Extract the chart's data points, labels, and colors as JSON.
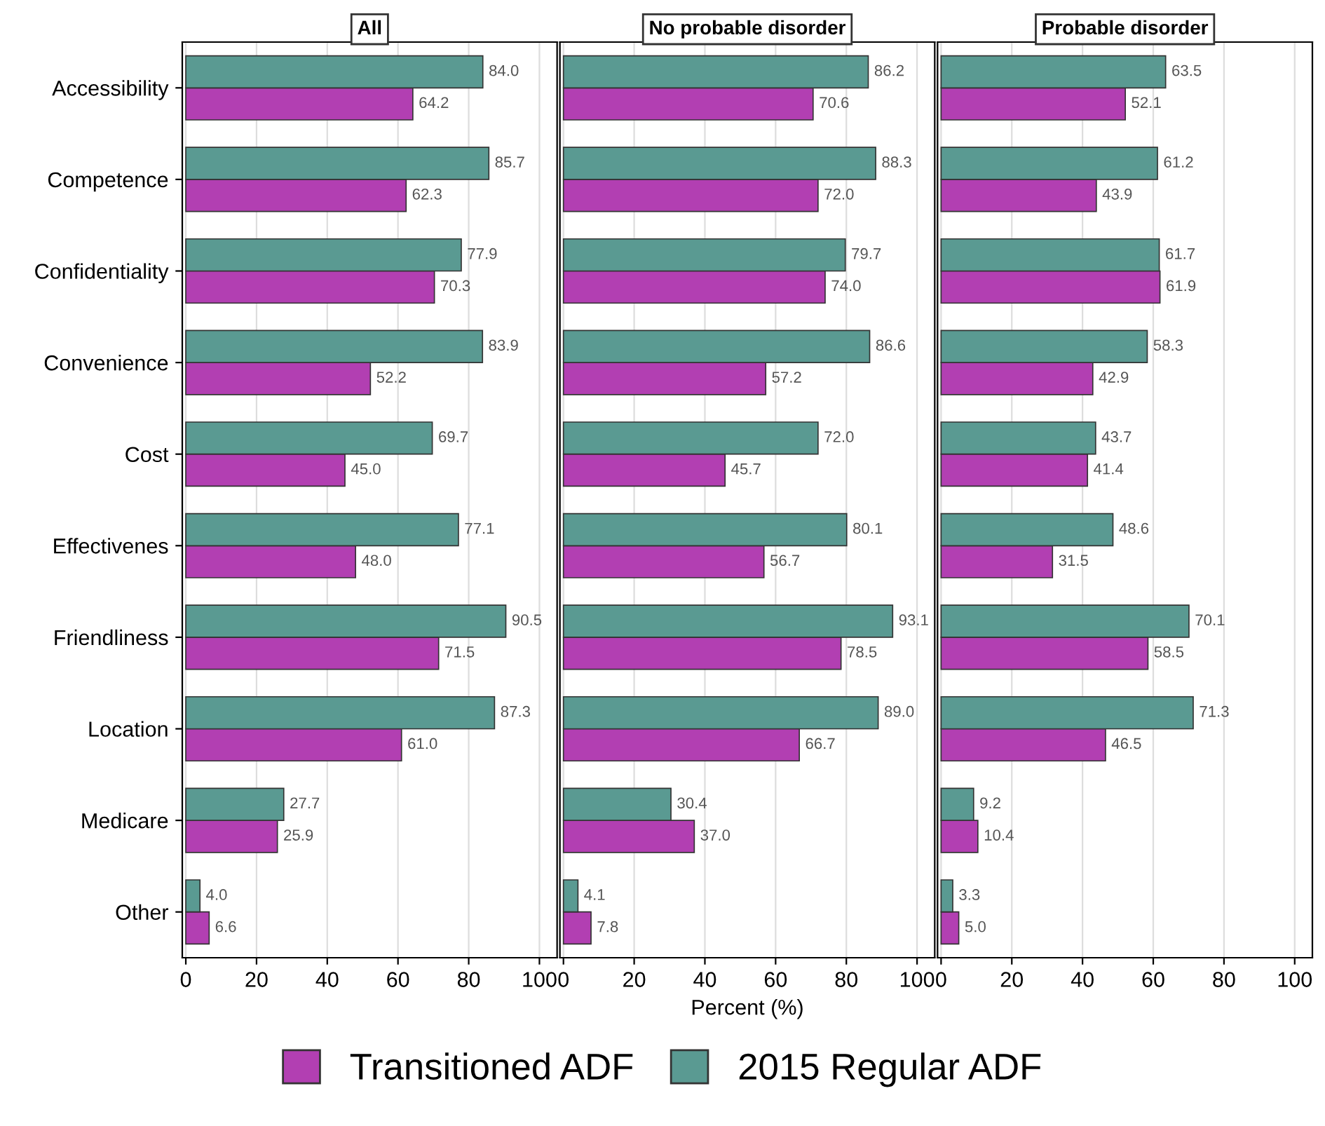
{
  "chart_data": [
    {
      "type": "bar",
      "orientation": "horizontal",
      "title": "All",
      "categories": [
        "Accessibility",
        "Competence",
        "Confidentiality",
        "Convenience",
        "Cost",
        "Effectivenes",
        "Friendliness",
        "Location",
        "Medicare",
        "Other"
      ],
      "series": [
        {
          "name": "Transitioned ADF",
          "color": "#b23fb2",
          "values": [
            64.2,
            62.3,
            70.3,
            52.2,
            45.0,
            48.0,
            71.5,
            61.0,
            25.9,
            6.6
          ],
          "value_labels": [
            "64.2",
            "62.3",
            "70.3",
            "52.2",
            "45.0",
            "48.0",
            "71.5",
            "61.0",
            "25.9",
            "6.6"
          ]
        },
        {
          "name": "2015 Regular ADF",
          "color": "#5a9a92",
          "values": [
            84.0,
            85.7,
            77.9,
            83.9,
            69.7,
            77.1,
            90.5,
            87.3,
            27.7,
            4.0
          ],
          "value_labels": [
            "84.0",
            "85.7",
            "77.9",
            "83.9",
            "69.7",
            "77.1",
            "90.5",
            "87.3",
            "27.7",
            "4.0"
          ]
        }
      ],
      "xlim": [
        -1,
        105
      ],
      "xticks": [
        0,
        20,
        40,
        60,
        80,
        100
      ],
      "grid": "x",
      "legend": "bottom"
    },
    {
      "type": "bar",
      "orientation": "horizontal",
      "title": "No probable disorder",
      "xlabel": "Percent (%)",
      "categories": [
        null,
        null,
        null,
        null,
        null,
        null,
        null,
        null,
        null,
        null
      ],
      "series": [
        {
          "color": "#b23fb2",
          "values": [
            70.6,
            72.0,
            74.0,
            57.2,
            45.7,
            56.7,
            78.5,
            66.7,
            37.0,
            7.8
          ],
          "value_labels": [
            "70.6",
            "72.0",
            "74.0",
            "57.2",
            "45.7",
            "56.7",
            "78.5",
            "66.7",
            "37.0",
            "7.8"
          ]
        },
        {
          "color": "#5a9a92",
          "values": [
            86.2,
            88.3,
            79.7,
            86.6,
            72.0,
            80.1,
            93.1,
            89.0,
            30.4,
            4.1
          ],
          "value_labels": [
            "86.2",
            "88.3",
            "79.7",
            "86.6",
            "72.0",
            "80.1",
            "93.1",
            "89.0",
            "30.4",
            "4.1"
          ]
        }
      ],
      "xlim": [
        -1,
        105
      ],
      "xticks": [
        0,
        20,
        40,
        60,
        80,
        100
      ],
      "grid": "x",
      "tick_labels": "x"
    },
    {
      "type": "bar",
      "orientation": "horizontal",
      "title": "Probable disorder",
      "categories": [
        null,
        null,
        null,
        null,
        null,
        null,
        null,
        null,
        null,
        null
      ],
      "series": [
        {
          "color": "#b23fb2",
          "values": [
            52.1,
            43.9,
            61.9,
            42.9,
            41.4,
            31.5,
            58.5,
            46.5,
            10.4,
            5.0
          ],
          "value_labels": [
            "52.1",
            "43.9",
            "61.9",
            "42.9",
            "41.4",
            "31.5",
            "58.5",
            "46.5",
            "10.4",
            "5.0"
          ]
        },
        {
          "color": "#5a9a92",
          "values": [
            63.5,
            61.2,
            61.7,
            58.3,
            43.7,
            48.6,
            70.1,
            71.3,
            9.2,
            3.3
          ],
          "value_labels": [
            "63.5",
            "61.2",
            "61.7",
            "58.3",
            "43.7",
            "48.6",
            "70.1",
            "71.3",
            "9.2",
            "3.3"
          ]
        }
      ],
      "xlim": [
        -1,
        105
      ],
      "xticks": [
        0,
        20,
        40,
        60,
        80,
        100
      ],
      "grid": "x",
      "tick_labels": "x"
    }
  ]
}
